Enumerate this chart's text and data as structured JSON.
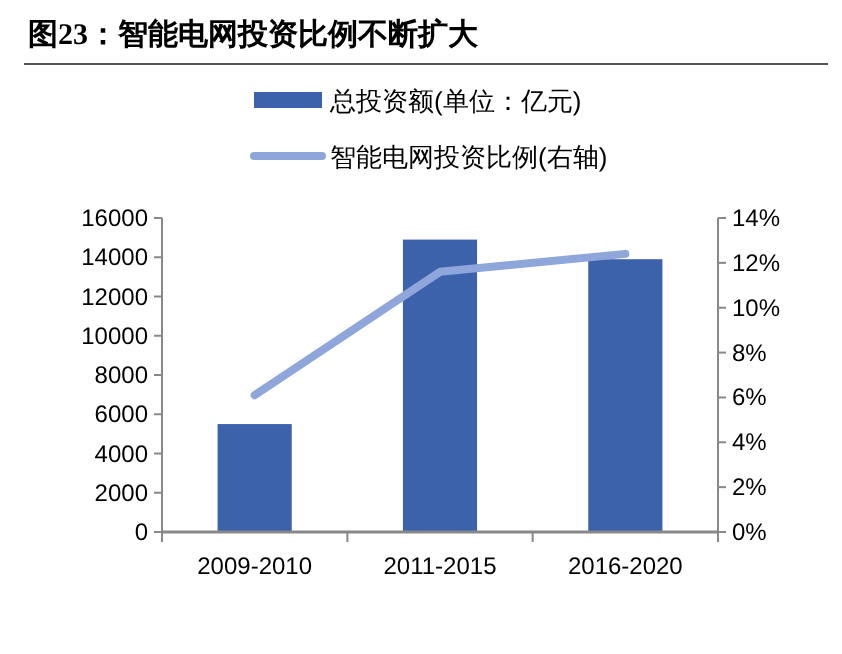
{
  "chart_data": {
    "type": "bar",
    "title": "图23：智能电网投资比例不断扩大",
    "categories": [
      "2009-2010",
      "2011-2015",
      "2016-2020"
    ],
    "series": [
      {
        "name": "总投资额(单位：亿元)",
        "color": "#3c62ac",
        "values": [
          5500,
          14900,
          13900
        ]
      },
      {
        "name": "智能电网投资比例(右轴)",
        "type": "line",
        "axis": "y2",
        "color": "#8fa6db",
        "values": [
          6.1,
          11.6,
          12.4
        ]
      }
    ],
    "ylim": [
      0,
      16000
    ],
    "yticks": [
      0,
      2000,
      4000,
      6000,
      8000,
      10000,
      12000,
      14000,
      16000
    ],
    "y2lim": [
      0,
      14
    ],
    "y2ticks": [
      {
        "value": 0,
        "label": "0%"
      },
      {
        "value": 2,
        "label": "2%"
      },
      {
        "value": 4,
        "label": "4%"
      },
      {
        "value": 6,
        "label": "6%"
      },
      {
        "value": 8,
        "label": "8%"
      },
      {
        "value": 10,
        "label": "10%"
      },
      {
        "value": 12,
        "label": "12%"
      },
      {
        "value": 14,
        "label": "14%"
      }
    ],
    "grid": false,
    "legend": "top",
    "marker": "none",
    "line_style": "solid"
  }
}
